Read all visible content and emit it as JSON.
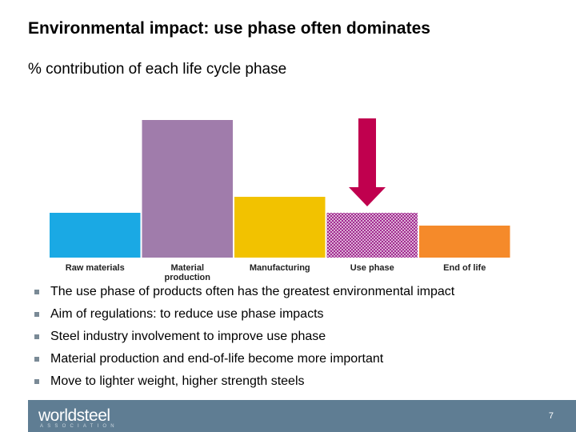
{
  "chart_data": {
    "type": "bar",
    "title": "Environmental impact: use phase often dominates",
    "subtitle": "% contribution of each life cycle phase",
    "categories": [
      "Raw materials",
      "Material production",
      "Manufacturing",
      "Use phase",
      "End of life"
    ],
    "values": [
      14,
      43,
      19,
      14,
      10
    ],
    "colors": [
      "#1aa9e4",
      "#a07cab",
      "#f2c200",
      "#a0288f",
      "#f58a2a"
    ],
    "hatched": [
      false,
      false,
      false,
      true,
      false
    ],
    "ylim": [
      0,
      45
    ]
  },
  "bullets": [
    "The use phase of products often has the greatest environmental impact",
    "Aim of regulations: to reduce use phase impacts",
    "Steel industry involvement to improve use phase",
    "Material production and end-of-life become more important",
    "Move to lighter weight, higher strength steels"
  ],
  "footer": {
    "logo": "worldsteel",
    "logo_sub": "ASSOCIATION",
    "page": 7
  }
}
